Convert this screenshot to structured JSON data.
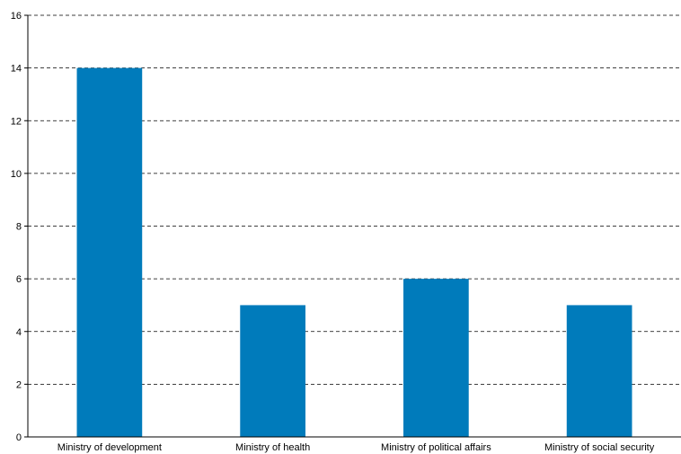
{
  "chart_data": {
    "type": "bar",
    "categories": [
      "Ministry of development",
      "Ministry of health",
      "Ministry of political affairs",
      "Ministry of social security"
    ],
    "values": [
      14,
      5,
      6,
      5
    ],
    "title": "",
    "xlabel": "",
    "ylabel": "",
    "ylim": [
      0,
      16
    ],
    "yticks": [
      "0",
      "2",
      "4",
      "6",
      "8",
      "10",
      "12",
      "14",
      "16"
    ],
    "grid": "horizontal dashed",
    "legend": "none",
    "bar_color": "#007bbb"
  }
}
